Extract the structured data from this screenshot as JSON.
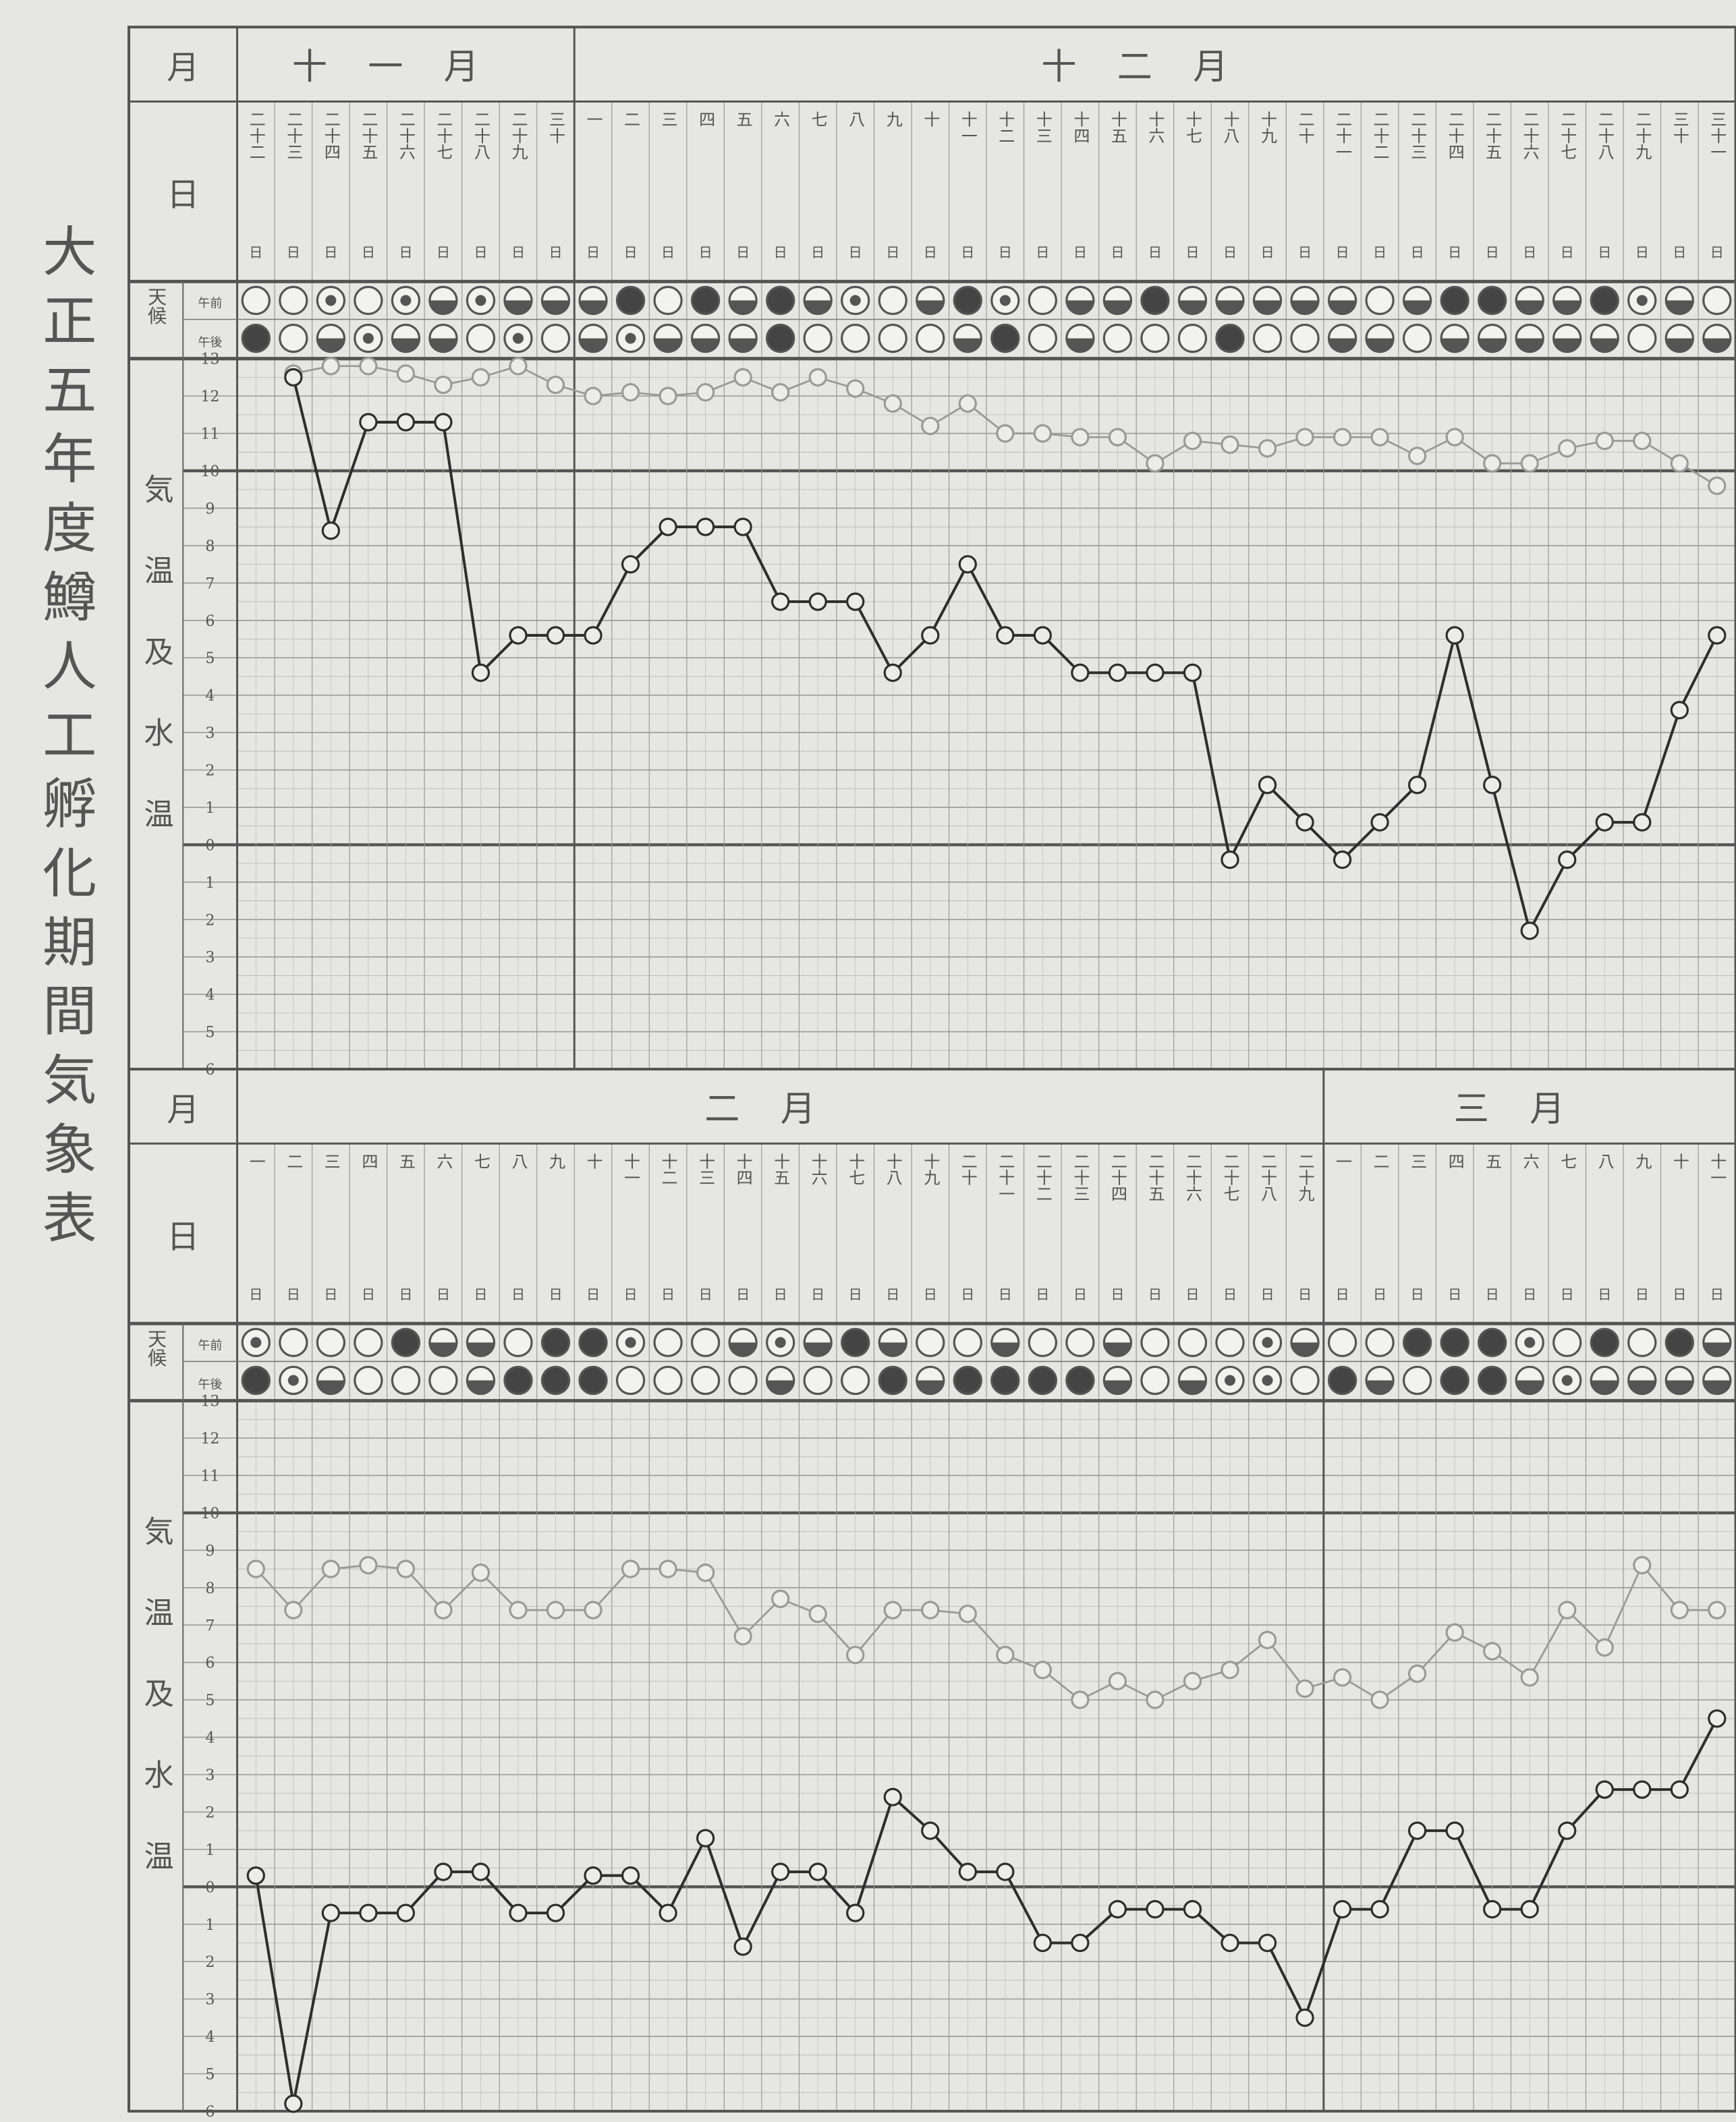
{
  "title": "大正五年度鱒人工孵化期間気象表",
  "labels": {
    "month": "月",
    "day": "日",
    "weather": "天候",
    "am": "午前",
    "pm": "午後",
    "temperature": "気温及水温"
  },
  "day_suffix": "日",
  "yticks": [
    13,
    12,
    11,
    10,
    9,
    8,
    7,
    6,
    5,
    4,
    3,
    2,
    1,
    0,
    {
      "value": -1,
      "label": "1"
    },
    {
      "value": -2,
      "label": "2"
    },
    {
      "value": -3,
      "label": "3"
    },
    {
      "value": -4,
      "label": "4"
    },
    {
      "value": -5,
      "label": "5"
    },
    {
      "value": -6,
      "label": "6"
    }
  ],
  "ylim": [
    -6,
    13
  ],
  "heavy_ticks": [
    10,
    0
  ],
  "panels": [
    {
      "months": [
        {
          "label": "十一月",
          "days": [
            "二十二",
            "二十三",
            "二十四",
            "二十五",
            "二十六",
            "二十七",
            "二十八",
            "二十九",
            "三十"
          ]
        },
        {
          "label": "十二月",
          "days": [
            "一",
            "二",
            "三",
            "四",
            "五",
            "六",
            "七",
            "八",
            "九",
            "十",
            "十一",
            "十二",
            "十三",
            "十四",
            "十五",
            "十六",
            "十七",
            "十八",
            "十九",
            "二十",
            "二十一",
            "二十二",
            "二十三",
            "二十四",
            "二十五",
            "二十六",
            "二十七",
            "二十八",
            "二十九",
            "三十",
            "三十一"
          ]
        }
      ],
      "series": [
        {
          "color": "#2e2e2e",
          "values": [
            null,
            12.5,
            8.4,
            11.3,
            11.3,
            11.3,
            4.6,
            5.6,
            5.6,
            5.6,
            7.5,
            8.5,
            8.5,
            8.5,
            6.5,
            6.5,
            6.5,
            4.6,
            5.6,
            7.5,
            5.6,
            5.6,
            4.6,
            4.6,
            4.6,
            4.6,
            -0.4,
            1.6,
            0.6,
            -0.4,
            0.6,
            1.6,
            5.6,
            1.6,
            -2.3,
            -0.4,
            0.6,
            0.6,
            3.6,
            5.6
          ]
        },
        {
          "color": "#9a9a9a",
          "values": [
            null,
            12.6,
            12.8,
            12.8,
            12.6,
            12.3,
            12.5,
            12.8,
            12.3,
            12.0,
            12.1,
            12.0,
            12.1,
            12.5,
            12.1,
            12.5,
            12.2,
            11.8,
            11.2,
            11.8,
            11.0,
            11.0,
            10.9,
            10.9,
            10.2,
            10.8,
            10.7,
            10.6,
            10.9,
            10.9,
            10.9,
            10.4,
            10.9,
            10.2,
            10.2,
            10.6,
            10.8,
            10.8,
            10.2,
            9.6
          ]
        }
      ]
    },
    {
      "months": [
        {
          "label": "二月",
          "days": [
            "一",
            "二",
            "三",
            "四",
            "五",
            "六",
            "七",
            "八",
            "九",
            "十",
            "十一",
            "十二",
            "十三",
            "十四",
            "十五",
            "十六",
            "十七",
            "十八",
            "十九",
            "二十",
            "二十一",
            "二十二",
            "二十三",
            "二十四",
            "二十五",
            "二十六",
            "二十七",
            "二十八",
            "二十九"
          ]
        },
        {
          "label": "三月",
          "days": [
            "一",
            "二",
            "三",
            "四",
            "五",
            "六",
            "七",
            "八",
            "九",
            "十",
            "十一"
          ]
        }
      ],
      "series": [
        {
          "color": "#2e2e2e",
          "values": [
            0.3,
            -5.8,
            -0.7,
            -0.7,
            -0.7,
            0.4,
            0.4,
            -0.7,
            -0.7,
            0.3,
            0.3,
            -0.7,
            1.3,
            -1.6,
            0.4,
            0.4,
            -0.7,
            2.4,
            1.5,
            0.4,
            0.4,
            -1.5,
            -1.5,
            -0.6,
            -0.6,
            -0.6,
            -1.5,
            -1.5,
            -3.5,
            -0.6,
            -0.6,
            1.5,
            1.5,
            -0.6,
            -0.6,
            1.5,
            2.6,
            2.6,
            2.6,
            4.5
          ]
        },
        {
          "color": "#9a9a9a",
          "values": [
            8.5,
            7.4,
            8.5,
            8.6,
            8.5,
            7.4,
            8.4,
            7.4,
            7.4,
            7.4,
            8.5,
            8.5,
            8.4,
            6.7,
            7.7,
            7.3,
            6.2,
            7.4,
            7.4,
            7.3,
            6.2,
            5.8,
            5.0,
            5.5,
            5.0,
            5.5,
            5.8,
            6.6,
            5.3,
            5.6,
            5.0,
            5.7,
            6.8,
            6.3,
            5.6,
            7.4,
            6.4,
            8.6,
            7.4,
            7.4
          ]
        }
      ]
    }
  ]
}
